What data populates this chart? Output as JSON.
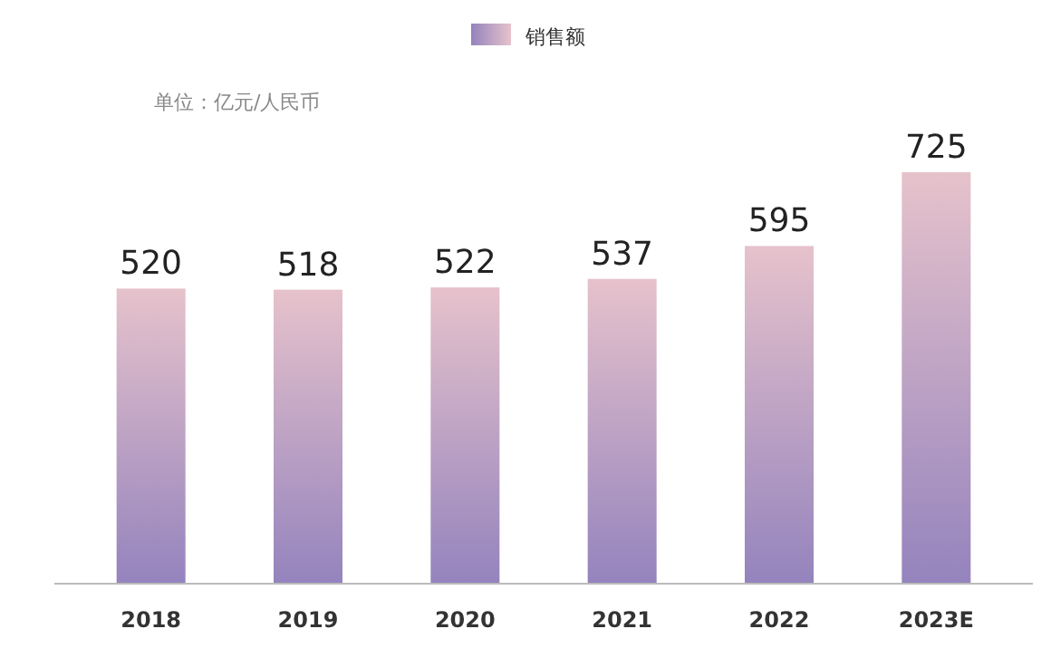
{
  "chart_data": {
    "type": "bar",
    "categories": [
      "2018",
      "2019",
      "2020",
      "2021",
      "2022",
      "2023E"
    ],
    "series": [
      {
        "name": "销售额",
        "color": "#9483bd",
        "values": [
          520,
          518,
          522,
          537,
          595,
          725
        ]
      }
    ],
    "data_labels": true,
    "legend": "top",
    "annotations": [
      "单位：亿元/人民币"
    ]
  }
}
